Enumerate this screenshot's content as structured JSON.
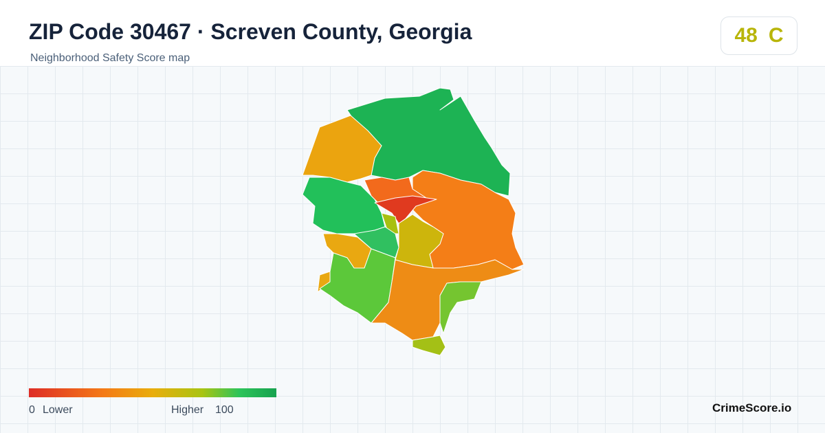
{
  "header": {
    "title": "ZIP Code 30467 · Screven County, Georgia",
    "subtitle": "Neighborhood Safety Score map"
  },
  "score": {
    "value": "48",
    "grade": "C"
  },
  "legend": {
    "min": "0",
    "min_label": "Lower",
    "max_label": "Higher",
    "max": "100"
  },
  "brand": "CrimeScore.io"
}
